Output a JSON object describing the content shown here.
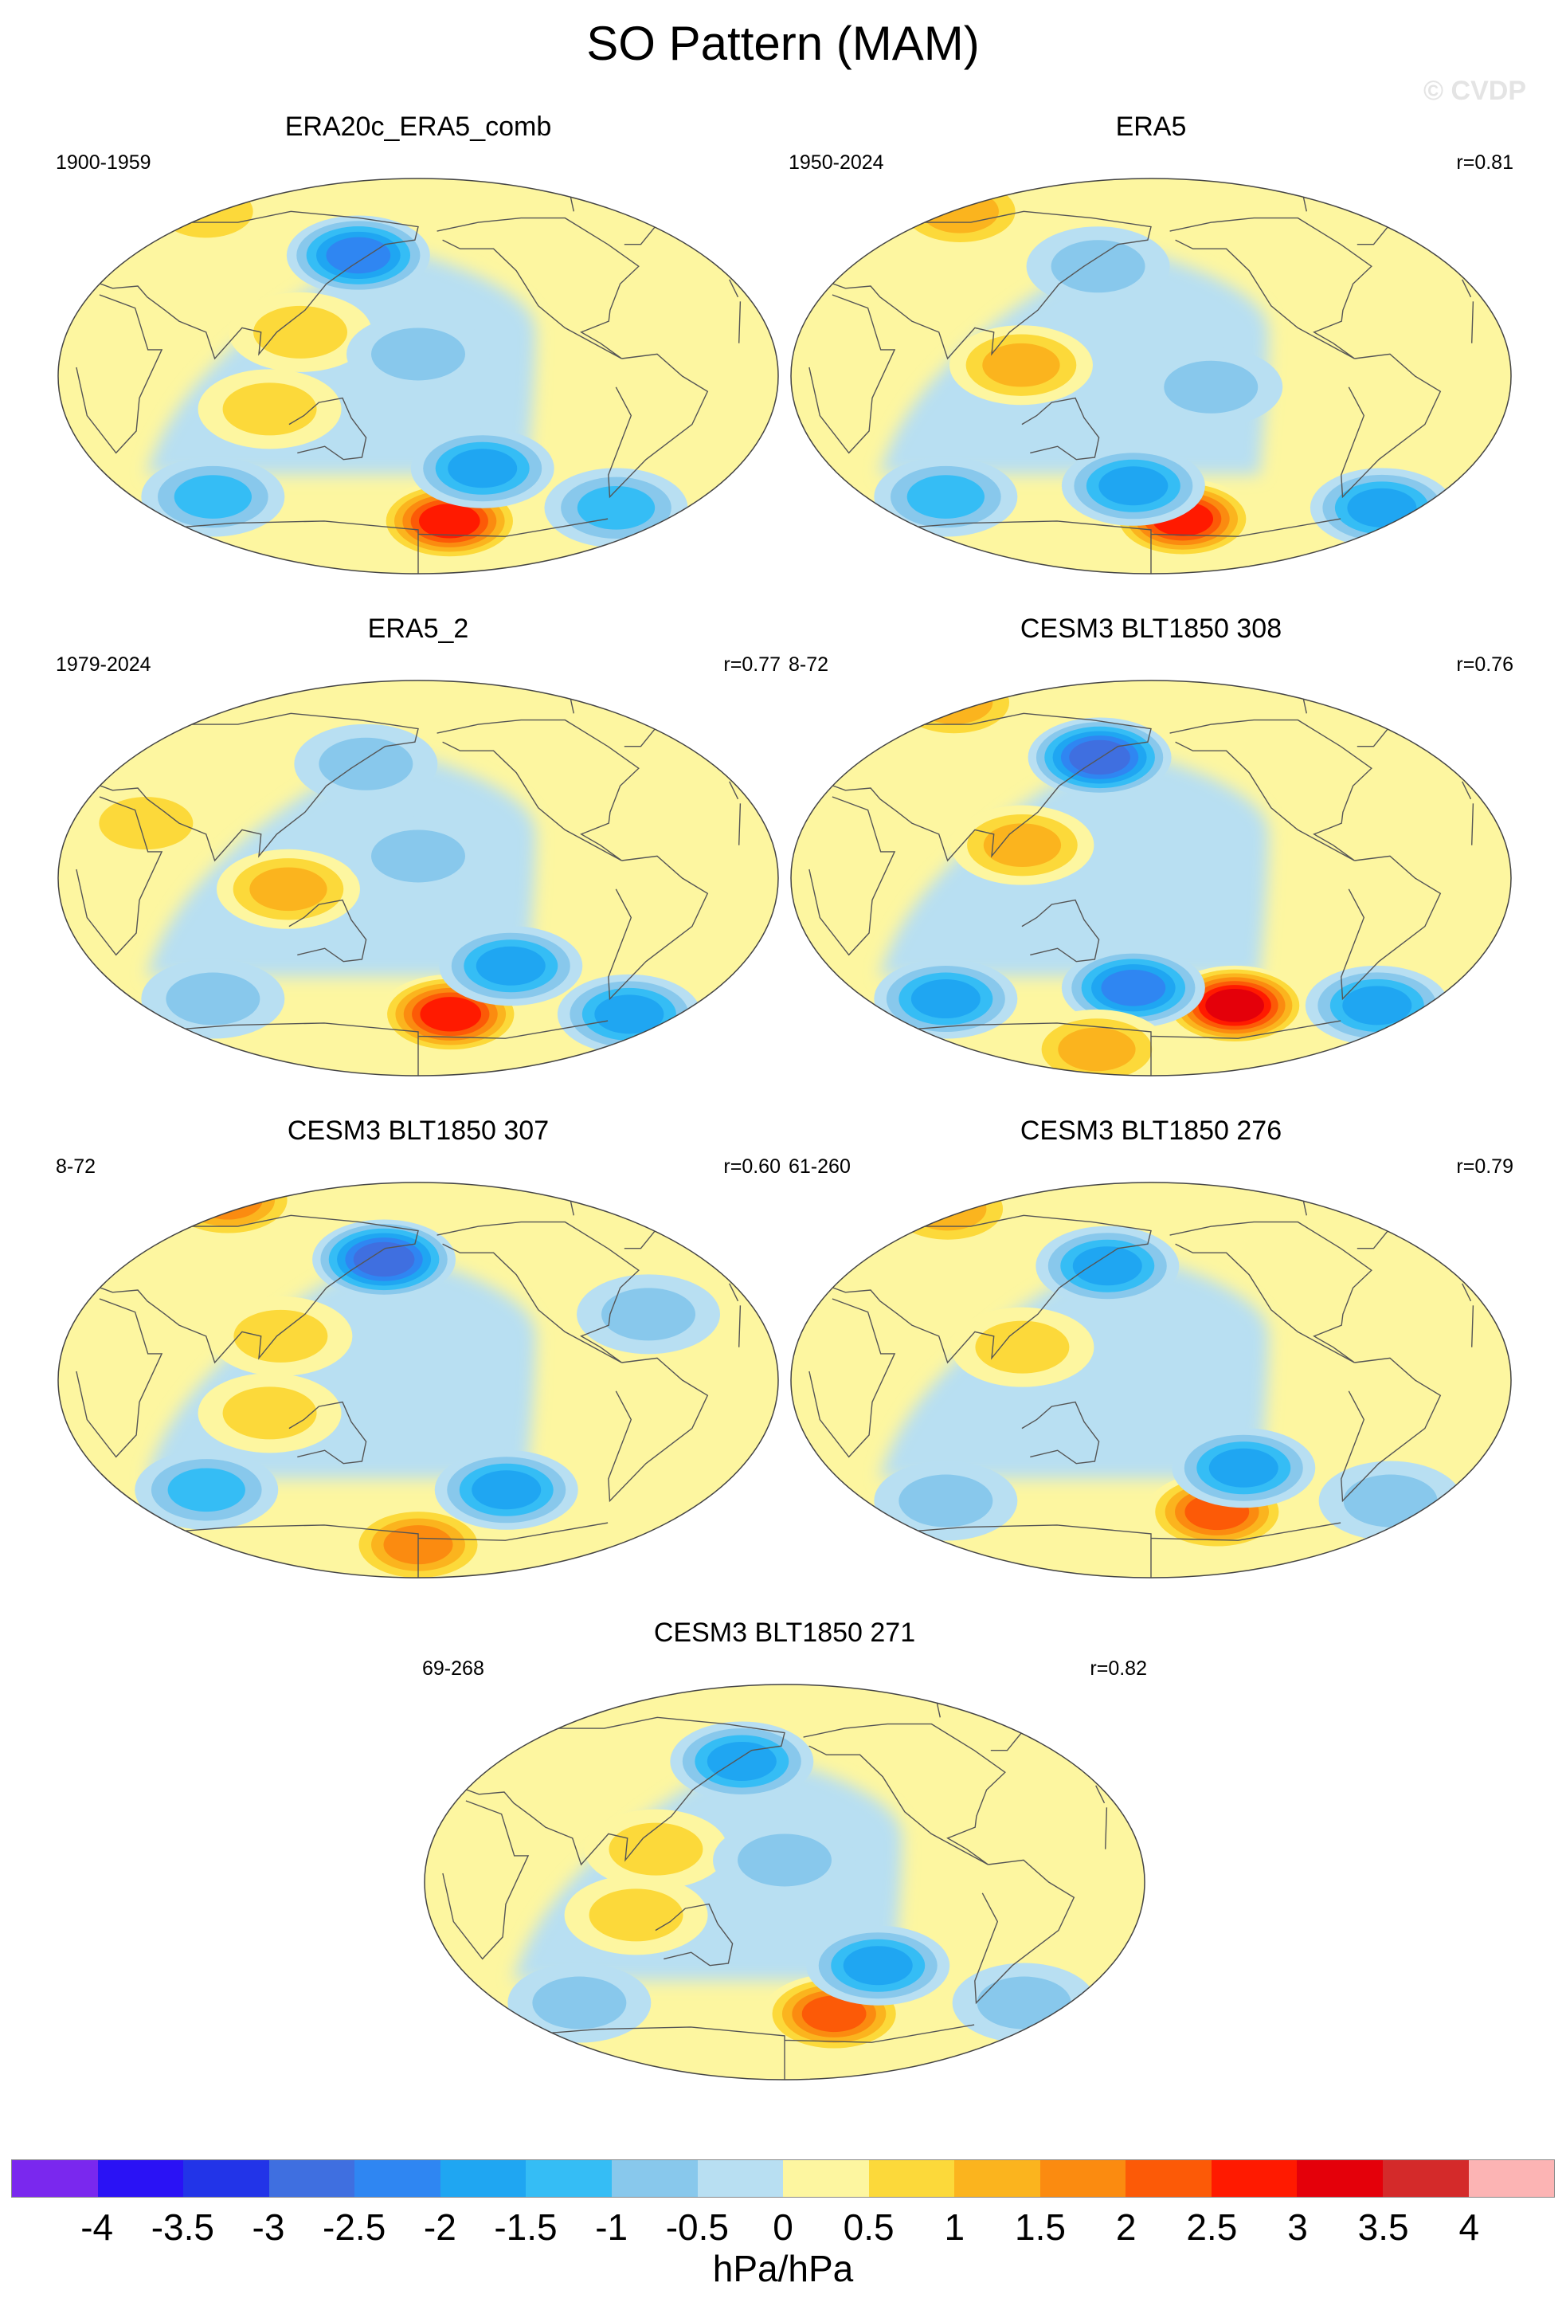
{
  "figure": {
    "title": "SO Pattern (MAM)",
    "credit": "© CVDP",
    "units": "hPa/hPa"
  },
  "panels": [
    {
      "title": "ERA20c_ERA5_comb",
      "period": "1900-1959",
      "corr": "",
      "anomalies": [
        {
          "lon": 200,
          "lat": -66,
          "value": 2.8
        },
        {
          "lon": 145,
          "lat": 55,
          "value": -2.2
        },
        {
          "lon": 215,
          "lat": -42,
          "value": -1.8
        },
        {
          "lon": 120,
          "lat": 20,
          "value": 0.8
        },
        {
          "lon": 105,
          "lat": -15,
          "value": 0.7
        },
        {
          "lon": 60,
          "lat": -55,
          "value": -1.5
        },
        {
          "lon": 300,
          "lat": -60,
          "value": -1.5
        },
        {
          "lon": 180,
          "lat": 10,
          "value": -0.7
        },
        {
          "lon": 30,
          "lat": 75,
          "value": 1.0
        }
      ]
    },
    {
      "title": "ERA5",
      "period": "1950-2024",
      "corr": "r=0.81",
      "anomalies": [
        {
          "lon": 200,
          "lat": -65,
          "value": 2.6
        },
        {
          "lon": 115,
          "lat": 5,
          "value": 1.2
        },
        {
          "lon": 150,
          "lat": 50,
          "value": -0.9
        },
        {
          "lon": 170,
          "lat": -50,
          "value": -1.8
        },
        {
          "lon": 320,
          "lat": -60,
          "value": -1.6
        },
        {
          "lon": 60,
          "lat": -55,
          "value": -1.2
        },
        {
          "lon": 45,
          "lat": 75,
          "value": 1.1
        },
        {
          "lon": 210,
          "lat": -5,
          "value": -0.6
        }
      ]
    },
    {
      "title": "ERA5_2",
      "period": "1979-2024",
      "corr": "r=0.77",
      "anomalies": [
        {
          "lon": 200,
          "lat": -62,
          "value": 2.6
        },
        {
          "lon": 115,
          "lat": -5,
          "value": 1.1
        },
        {
          "lon": 230,
          "lat": -40,
          "value": -1.6
        },
        {
          "lon": 310,
          "lat": -62,
          "value": -1.8
        },
        {
          "lon": 150,
          "lat": 52,
          "value": -0.8
        },
        {
          "lon": 60,
          "lat": -55,
          "value": -1.0
        },
        {
          "lon": 40,
          "lat": 25,
          "value": 0.7
        },
        {
          "lon": 180,
          "lat": 10,
          "value": -0.6
        }
      ]
    },
    {
      "title": "CESM3 BLT1850 308",
      "period": "8-72",
      "corr": "r=0.76",
      "anomalies": [
        {
          "lon": 230,
          "lat": -58,
          "value": 3.2
        },
        {
          "lon": 150,
          "lat": 55,
          "value": -2.6
        },
        {
          "lon": 170,
          "lat": -50,
          "value": -2.4
        },
        {
          "lon": 315,
          "lat": -58,
          "value": -2.0
        },
        {
          "lon": 60,
          "lat": -55,
          "value": -1.6
        },
        {
          "lon": 115,
          "lat": 15,
          "value": 1.1
        },
        {
          "lon": 140,
          "lat": -78,
          "value": 1.2
        },
        {
          "lon": 30,
          "lat": 80,
          "value": 1.4
        }
      ]
    },
    {
      "title": "CESM3 BLT1850 307",
      "period": "8-72",
      "corr": "r=0.60",
      "anomalies": [
        {
          "lon": 160,
          "lat": 55,
          "value": -2.6
        },
        {
          "lon": 30,
          "lat": 82,
          "value": 2.0
        },
        {
          "lon": 180,
          "lat": -75,
          "value": 1.6
        },
        {
          "lon": 230,
          "lat": -50,
          "value": -1.6
        },
        {
          "lon": 110,
          "lat": 20,
          "value": 1.0
        },
        {
          "lon": 105,
          "lat": -15,
          "value": 0.9
        },
        {
          "lon": 60,
          "lat": -50,
          "value": -1.1
        },
        {
          "lon": 300,
          "lat": 30,
          "value": -0.9
        }
      ]
    },
    {
      "title": "CESM3 BLT1850 276",
      "period": "61-260",
      "corr": "r=0.79",
      "anomalies": [
        {
          "lon": 220,
          "lat": -60,
          "value": 2.2
        },
        {
          "lon": 155,
          "lat": 52,
          "value": -1.7
        },
        {
          "lon": 230,
          "lat": -40,
          "value": -1.6
        },
        {
          "lon": 115,
          "lat": 15,
          "value": 1.0
        },
        {
          "lon": 60,
          "lat": -55,
          "value": -1.0
        },
        {
          "lon": 320,
          "lat": -55,
          "value": -1.0
        },
        {
          "lon": 30,
          "lat": 78,
          "value": 1.1
        }
      ]
    },
    {
      "title": "CESM3 BLT1850 271",
      "period": "69-268",
      "corr": "r=0.82",
      "anomalies": [
        {
          "lon": 210,
          "lat": -60,
          "value": 2.2
        },
        {
          "lon": 155,
          "lat": 55,
          "value": -1.6
        },
        {
          "lon": 230,
          "lat": -38,
          "value": -1.6
        },
        {
          "lon": 115,
          "lat": 15,
          "value": 0.9
        },
        {
          "lon": 105,
          "lat": -15,
          "value": 0.9
        },
        {
          "lon": 60,
          "lat": -55,
          "value": -1.0
        },
        {
          "lon": 320,
          "lat": -55,
          "value": -0.9
        },
        {
          "lon": 180,
          "lat": 10,
          "value": -0.6
        }
      ]
    }
  ],
  "colorbar": {
    "labels": [
      "-4",
      "-3.5",
      "-3",
      "-2.5",
      "-2",
      "-1.5",
      "-1",
      "-0.5",
      "0",
      "0.5",
      "1",
      "1.5",
      "2",
      "2.5",
      "3",
      "3.5",
      "4"
    ],
    "colors": [
      "#7a28ee",
      "#2a12f5",
      "#2234e8",
      "#3f6fe0",
      "#2f86f2",
      "#1fa6f2",
      "#35bdf5",
      "#88c8ec",
      "#b8dff2",
      "#fdf6a0",
      "#fcd93a",
      "#fbb41e",
      "#fb8b10",
      "#fc5a07",
      "#ff1a00",
      "#e4000a",
      "#d42a2a",
      "#fcb4b4"
    ]
  }
}
